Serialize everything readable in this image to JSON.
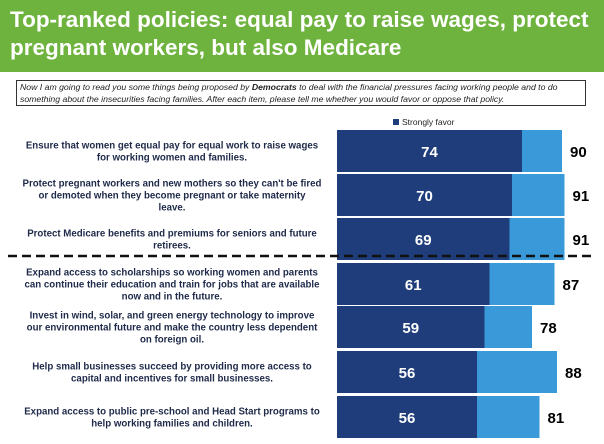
{
  "header": {
    "title": "Top-ranked policies: equal pay to raise wages, protect pregnant workers, but also Medicare"
  },
  "question": {
    "part1": "Now I am going to read you some things being proposed by ",
    "emph": "Democrats",
    "part2": " to deal with the financial pressures facing working people and to do something about the insecurities facing families. After each item, please tell me whether you would favor or oppose that policy."
  },
  "colors": {
    "header_bg": "#6fb33f",
    "strongly_favor": "#1f3d7a",
    "total_favor": "#3a9ad9"
  },
  "chart_data": {
    "type": "bar",
    "orientation": "horizontal",
    "stacked": true,
    "legend": {
      "position": "top",
      "entries": [
        "Strongly favor"
      ]
    },
    "divider_after_index": 2,
    "categories": [
      [
        "Ensure that women get equal pay for equal work to raise wages",
        "for working women and families."
      ],
      [
        "Protect pregnant workers and new mothers so they can't be fired",
        "or demoted when they become pregnant or take maternity",
        "leave."
      ],
      [
        "Protect Medicare benefits and premiums for seniors and future",
        "retirees."
      ],
      [
        "Expand access to scholarships so working women and parents",
        "can continue their education and train for jobs that are available",
        "now and in the future."
      ],
      [
        "Invest in wind, solar, and green energy technology to improve",
        "our environmental future and make the country less dependent",
        "on foreign oil."
      ],
      [
        "Help small businesses succeed by providing more access to",
        "capital and incentives for small businesses."
      ],
      [
        "Expand access to public pre-school and Head Start programs to",
        "help working families and children."
      ]
    ],
    "series": [
      {
        "name": "Strongly favor",
        "values": [
          74,
          70,
          69,
          61,
          59,
          56,
          56
        ]
      }
    ],
    "totals": [
      90,
      91,
      91,
      87,
      78,
      88,
      81
    ],
    "xlim": [
      0,
      100
    ]
  }
}
